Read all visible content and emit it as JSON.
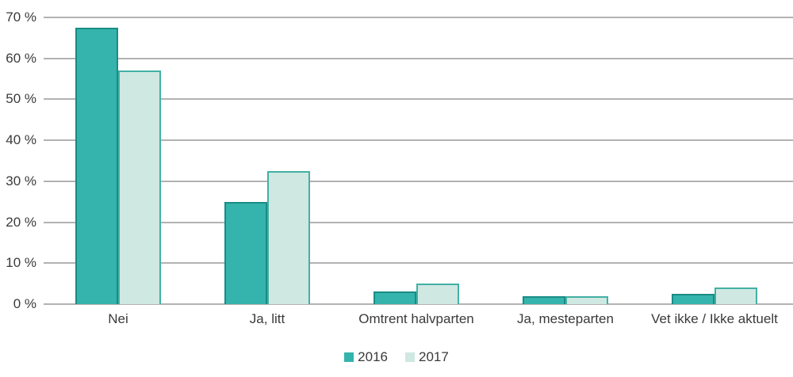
{
  "chart_data": {
    "type": "bar",
    "title": "",
    "xlabel": "",
    "ylabel": "",
    "categories": [
      "Nei",
      "Ja, litt",
      "Omtrent halvparten",
      "Ja, mesteparten",
      "Vet ikke / Ikke aktuelt"
    ],
    "series": [
      {
        "name": "2016",
        "fill": "#34b4ac",
        "border": "#1a8c84",
        "values": [
          67.5,
          25,
          3,
          2,
          2.5
        ]
      },
      {
        "name": "2017",
        "fill": "#cfe8e1",
        "border": "#43b0a5",
        "values": [
          57,
          32.5,
          5,
          2,
          4
        ]
      }
    ],
    "ylim": [
      0,
      70
    ],
    "ytick_step": 10,
    "yticks": [
      {
        "value": 0,
        "label": "0 %"
      },
      {
        "value": 10,
        "label": "10 %"
      },
      {
        "value": 20,
        "label": "20 %"
      },
      {
        "value": 30,
        "label": "30 %"
      },
      {
        "value": 40,
        "label": "40 %"
      },
      {
        "value": 50,
        "label": "50 %"
      },
      {
        "value": 60,
        "label": "60 %"
      },
      {
        "value": 70,
        "label": "70 %"
      }
    ],
    "grid": true,
    "gridline_color": "#b2b2b2",
    "legend_position": "bottom"
  }
}
